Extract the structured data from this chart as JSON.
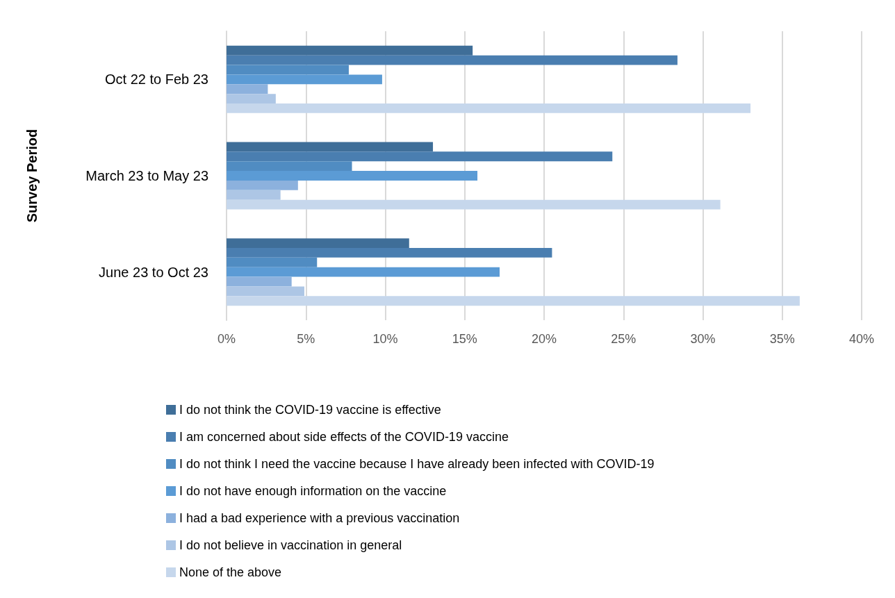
{
  "chart_data": {
    "type": "bar",
    "orientation": "horizontal",
    "ylabel": "Survey Period",
    "categories": [
      "Oct 22 to Feb 23",
      "March 23 to May 23",
      "June 23 to Oct 23"
    ],
    "series": [
      {
        "name": "I do not think the COVID-19 vaccine is effective",
        "color": "#3f6e98",
        "values": [
          15.5,
          13.0,
          11.5
        ]
      },
      {
        "name": "I am concerned about side effects of the COVID-19 vaccine",
        "color": "#4a7eb0",
        "values": [
          28.4,
          24.3,
          20.5
        ]
      },
      {
        "name": "I do not think I need the vaccine because I have already been infected with COVID-19",
        "color": "#508cc2",
        "values": [
          7.7,
          7.9,
          5.7
        ]
      },
      {
        "name": "I do not have enough information on the vaccine",
        "color": "#5b9bd5",
        "values": [
          9.8,
          15.8,
          17.2
        ]
      },
      {
        "name": "I had a bad experience with a previous vaccination",
        "color": "#8cb1dd",
        "values": [
          2.6,
          4.5,
          4.1
        ]
      },
      {
        "name": "I do not believe in vaccination in general",
        "color": "#adc6e5",
        "values": [
          3.1,
          3.4,
          4.9
        ]
      },
      {
        "name": "None of the above",
        "color": "#c6d7ec",
        "values": [
          33.0,
          31.1,
          36.1
        ]
      }
    ],
    "xlim": [
      0,
      40
    ],
    "xticks": [
      {
        "value": 0,
        "label": "0%"
      },
      {
        "value": 5,
        "label": "5%"
      },
      {
        "value": 10,
        "label": "10%"
      },
      {
        "value": 15,
        "label": "15%"
      },
      {
        "value": 20,
        "label": "20%"
      },
      {
        "value": 25,
        "label": "25%"
      },
      {
        "value": 30,
        "label": "30%"
      },
      {
        "value": 35,
        "label": "35%"
      },
      {
        "value": 40,
        "label": "40%"
      }
    ],
    "grid": "x",
    "legend": "bottom"
  }
}
